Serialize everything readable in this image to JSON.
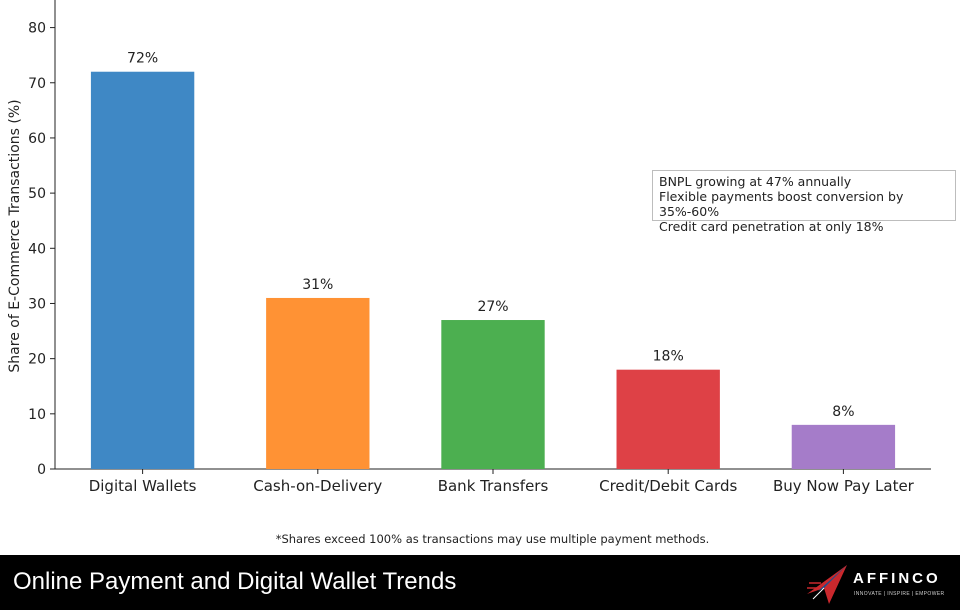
{
  "chart_data": {
    "type": "bar",
    "categories": [
      "Digital Wallets",
      "Cash-on-Delivery",
      "Bank Transfers",
      "Credit/Debit Cards",
      "Buy Now Pay Later"
    ],
    "values": [
      72,
      31,
      27,
      18,
      8
    ],
    "value_labels": [
      "72%",
      "31%",
      "27%",
      "18%",
      "8%"
    ],
    "colors": [
      "#3f88c5",
      "#ff9234",
      "#4caf50",
      "#de4146",
      "#a57cc9"
    ],
    "title": "",
    "xlabel": "",
    "ylabel": "Share of E-Commerce Transactions (%)",
    "ylim": [
      0,
      85
    ],
    "yticks": [
      0,
      10,
      20,
      30,
      40,
      50,
      60,
      70,
      80
    ],
    "grid": false,
    "annotations": [
      "BNPL growing at 47% annually",
      "Flexible payments boost conversion by 35%-60%",
      "Credit card penetration at only 18%"
    ]
  },
  "footnote": "*Shares exceed 100% as transactions may use multiple payment methods.",
  "footer": {
    "title": "Online Payment and Digital Wallet Trends",
    "brand_name": "AFFINCO",
    "brand_tagline": "INNOVATE | INSPIRE | EMPOWER"
  }
}
